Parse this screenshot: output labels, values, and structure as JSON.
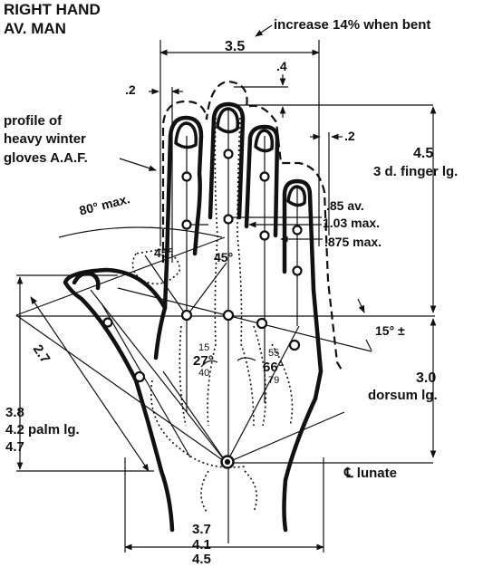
{
  "title": {
    "line1": "RIGHT HAND",
    "line2": "AV. MAN"
  },
  "callouts": {
    "increase_bent": "increase 14% when bent",
    "glove_profile": [
      "profile of",
      "heavy winter",
      "gloves A.A.F."
    ],
    "lunate": "℄ lunate"
  },
  "dimensions": {
    "hand_width": "3.5",
    "fingertip_offset": ".4",
    "glove_margin_left": ".2",
    "glove_margin_right": ".2",
    "finger_length": "4.5",
    "finger_length_label": "3 d. finger lg.",
    "finger_width_av": ".85 av.",
    "finger_width_max": "1.03 max.",
    "finger_width_875": ".875 max.",
    "thumb_spread": "80° max.",
    "joint_angle_left": "45°",
    "joint_angle_right": "45°",
    "knuckle_slope": "15° ±",
    "thumb_length": "2.7",
    "palm_length": [
      "3.8",
      "4.2 palm lg.",
      "4.7"
    ],
    "dorsum_length": [
      "3.0",
      "dorsum lg."
    ],
    "angle_27": [
      "15",
      "27°",
      "40"
    ],
    "angle_66": [
      "55",
      "66°",
      "79"
    ],
    "palm_width": [
      "3.7",
      "4.1",
      "4.5"
    ]
  },
  "colors": {
    "ink": "#111111",
    "paper": "#ffffff"
  }
}
